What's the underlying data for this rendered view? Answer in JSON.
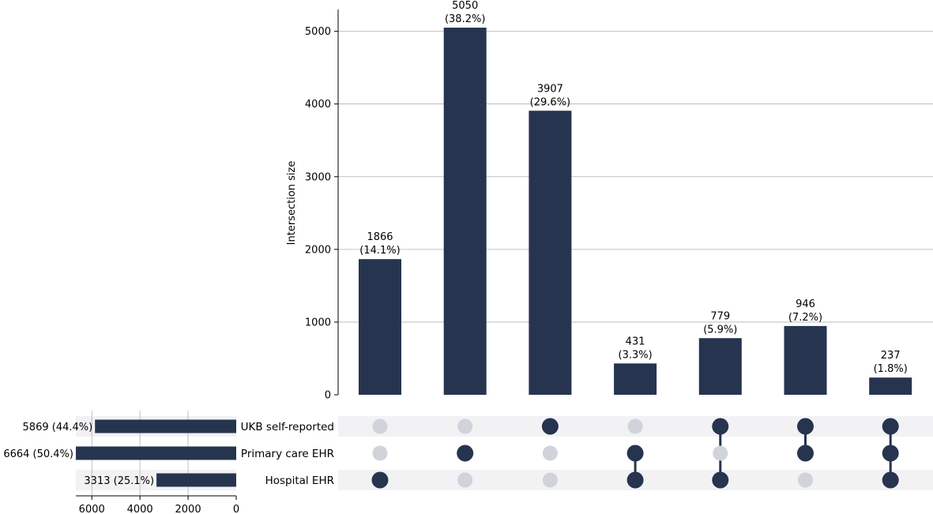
{
  "chart_data": {
    "type": "upset",
    "ylabel": "Intersection size",
    "ylim": [
      0,
      5300
    ],
    "yticks": [
      0,
      1000,
      2000,
      3000,
      4000,
      5000
    ],
    "sets": [
      {
        "name": "UKB self-reported",
        "size": 5869,
        "label": "5869 (44.4%)"
      },
      {
        "name": "Primary care EHR",
        "size": 6664,
        "label": "6664 (50.4%)"
      },
      {
        "name": "Hospital EHR",
        "size": 3313,
        "label": "3313 (25.1%)"
      }
    ],
    "set_size_ticks": [
      6000,
      4000,
      2000,
      0
    ],
    "set_size_xlim": [
      6664,
      0
    ],
    "intersections": [
      {
        "members": [
          2
        ],
        "value": 1866,
        "value_label": "1866",
        "pct_label": "(14.1%)"
      },
      {
        "members": [
          1
        ],
        "value": 5050,
        "value_label": "5050",
        "pct_label": "(38.2%)"
      },
      {
        "members": [
          0
        ],
        "value": 3907,
        "value_label": "3907",
        "pct_label": "(29.6%)"
      },
      {
        "members": [
          1,
          2
        ],
        "value": 431,
        "value_label": "431",
        "pct_label": "(3.3%)"
      },
      {
        "members": [
          0,
          2
        ],
        "value": 779,
        "value_label": "779",
        "pct_label": "(5.9%)"
      },
      {
        "members": [
          0,
          1
        ],
        "value": 946,
        "value_label": "946",
        "pct_label": "(7.2%)"
      },
      {
        "members": [
          0,
          1,
          2
        ],
        "value": 237,
        "value_label": "237",
        "pct_label": "(1.8%)"
      }
    ],
    "colors": {
      "bar": "#263450",
      "dot_active": "#263450",
      "dot_inactive": "#d0d3da",
      "stripe": "#f2f2f4",
      "grid": "#b0b0b0"
    }
  }
}
